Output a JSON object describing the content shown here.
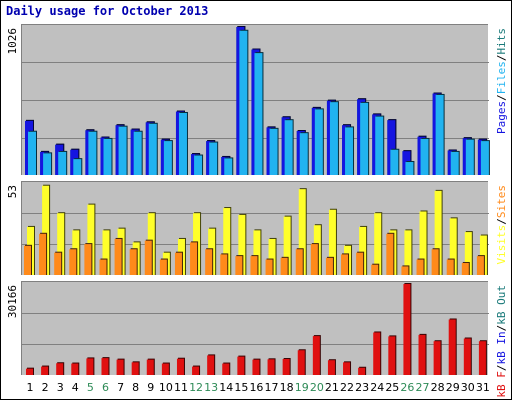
{
  "title": "Daily usage for October 2013",
  "colors": {
    "frame_bg": "#ffffff",
    "panel_bg": "#c0c0c0",
    "pages": "#1515e0",
    "files": "#21b3f0",
    "hits": "#1a7a7a",
    "visits": "#ffff2a",
    "sites": "#ff8a1a",
    "kb_f": "#e01010",
    "kb_in": "#1515e0",
    "kb_out": "#1a7a7a",
    "weekend_label": "#2e8b57",
    "weekday_label": "#000000"
  },
  "chart_data": [
    {
      "type": "bar",
      "panel": "top",
      "ymax_label": "1026",
      "categories": [
        "1",
        "2",
        "3",
        "4",
        "5",
        "6",
        "7",
        "8",
        "9",
        "10",
        "11",
        "12",
        "13",
        "14",
        "15",
        "16",
        "17",
        "18",
        "19",
        "20",
        "21",
        "22",
        "23",
        "24",
        "25",
        "26",
        "27",
        "28",
        "29",
        "30",
        "31"
      ],
      "weekend_days": [
        "5",
        "6",
        "12",
        "13",
        "19",
        "20",
        "26",
        "27"
      ],
      "legend": [
        {
          "text": "Pages",
          "color_key": "pages"
        },
        {
          "text": "/",
          "color_key": "weekday_label"
        },
        {
          "text": "Files",
          "color_key": "files"
        },
        {
          "text": "/",
          "color_key": "weekday_label"
        },
        {
          "text": "Hits",
          "color_key": "hits"
        }
      ],
      "ymax": 1026,
      "series": [
        {
          "name": "Hits",
          "color_key": "hits",
          "values": [
            375,
            160,
            210,
            175,
            310,
            260,
            345,
            315,
            365,
            245,
            440,
            145,
            235,
            125,
            1026,
            870,
            330,
            400,
            305,
            465,
            515,
            345,
            525,
            420,
            380,
            165,
            265,
            565,
            170,
            255,
            245
          ]
        },
        {
          "name": "Files",
          "color_key": "files",
          "values": [
            300,
            150,
            160,
            110,
            300,
            250,
            335,
            300,
            355,
            235,
            430,
            135,
            225,
            115,
            1000,
            845,
            320,
            380,
            290,
            455,
            505,
            330,
            500,
            405,
            175,
            90,
            250,
            555,
            160,
            245,
            235
          ]
        },
        {
          "name": "Pages",
          "color_key": "pages",
          "values": [
            375,
            160,
            210,
            175,
            310,
            260,
            345,
            315,
            365,
            245,
            440,
            145,
            235,
            125,
            1026,
            870,
            330,
            400,
            305,
            465,
            515,
            345,
            525,
            420,
            380,
            165,
            265,
            565,
            170,
            255,
            245
          ]
        }
      ]
    },
    {
      "type": "bar",
      "panel": "middle",
      "ymax_label": "53",
      "legend": [
        {
          "text": "Visits",
          "color_key": "visits"
        },
        {
          "text": "/",
          "color_key": "weekday_label"
        },
        {
          "text": "Sites",
          "color_key": "sites"
        }
      ],
      "ymax": 53,
      "series": [
        {
          "name": "Visits",
          "color_key": "visits",
          "values": [
            28,
            52,
            36,
            26,
            41,
            26,
            27,
            19,
            36,
            13,
            21,
            36,
            27,
            39,
            35,
            26,
            21,
            34,
            50,
            29,
            38,
            17,
            28,
            36,
            26,
            26,
            37,
            49,
            33,
            25,
            23
          ]
        },
        {
          "name": "Sites",
          "color_key": "sites",
          "values": [
            17,
            24,
            13,
            15,
            18,
            9,
            21,
            15,
            20,
            9,
            13,
            19,
            15,
            12,
            11,
            11,
            9,
            10,
            15,
            18,
            10,
            12,
            13,
            6,
            24,
            5,
            9,
            15,
            9,
            7,
            11
          ]
        }
      ]
    },
    {
      "type": "bar",
      "panel": "bottom",
      "ymax_label": "30166",
      "legend": [
        {
          "text": "kB F",
          "color_key": "kb_f"
        },
        {
          "text": "/",
          "color_key": "weekday_label"
        },
        {
          "text": "kB In",
          "color_key": "kb_in"
        },
        {
          "text": "/",
          "color_key": "weekday_label"
        },
        {
          "text": "kB Out",
          "color_key": "kb_out"
        }
      ],
      "ymax": 30166,
      "series": [
        {
          "name": "kB F",
          "color_key": "kb_f",
          "values": [
            2100,
            2800,
            3900,
            3800,
            5500,
            5600,
            5100,
            4200,
            5100,
            3800,
            5400,
            2800,
            6500,
            3800,
            6100,
            5100,
            5200,
            5300,
            8200,
            12900,
            4900,
            4200,
            2400,
            14100,
            12800,
            30166,
            13300,
            11200,
            18400,
            12100,
            11200
          ]
        }
      ]
    }
  ]
}
